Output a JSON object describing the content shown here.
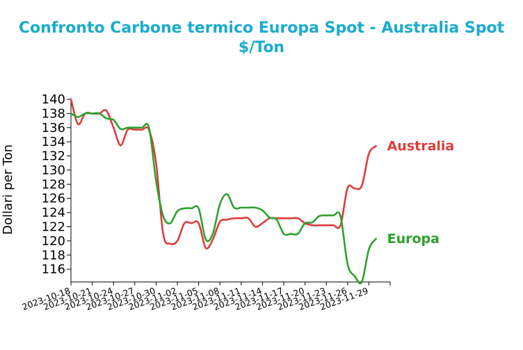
{
  "chart_data": {
    "type": "line",
    "title_line1": "Confronto Carbone termico Europa Spot - Australia Spot",
    "title_line2": "$/Ton",
    "xlabel": "",
    "ylabel": "Dollari per Ton",
    "ylim": [
      114.2,
      140
    ],
    "yticks": [
      116,
      118,
      120,
      122,
      124,
      126,
      128,
      130,
      132,
      134,
      136,
      138,
      140
    ],
    "xticks": [
      "2023-10-18",
      "2023-10-21",
      "2023-10-24",
      "2023-10-27",
      "2023-10-30",
      "2023-11-02",
      "2023-11-05",
      "2023-11-08",
      "2023-11-11",
      "2023-11-14",
      "2023-11-17",
      "2023-11-20",
      "2023-11-23",
      "2023-11-26",
      "2023-11-29"
    ],
    "grid": false,
    "series": [
      {
        "name": "Australia",
        "color": "#dd3b3b",
        "points": [
          [
            "2023-10-18",
            140.0
          ],
          [
            "2023-10-19",
            136.5
          ],
          [
            "2023-10-20",
            138.0
          ],
          [
            "2023-10-21",
            138.0
          ],
          [
            "2023-10-22",
            138.0
          ],
          [
            "2023-10-23",
            138.4
          ],
          [
            "2023-10-24",
            136.0
          ],
          [
            "2023-10-25",
            133.5
          ],
          [
            "2023-10-26",
            135.7
          ],
          [
            "2023-10-27",
            135.7
          ],
          [
            "2023-10-28",
            135.7
          ],
          [
            "2023-10-29",
            135.7
          ],
          [
            "2023-10-30",
            131.0
          ],
          [
            "2023-10-31",
            121.0
          ],
          [
            "2023-11-01",
            119.6
          ],
          [
            "2023-11-02",
            120.0
          ],
          [
            "2023-11-03",
            122.5
          ],
          [
            "2023-11-04",
            122.5
          ],
          [
            "2023-11-05",
            122.5
          ],
          [
            "2023-11-06",
            119.0
          ],
          [
            "2023-11-07",
            120.2
          ],
          [
            "2023-11-08",
            122.7
          ],
          [
            "2023-11-09",
            123.0
          ],
          [
            "2023-11-10",
            123.2
          ],
          [
            "2023-11-11",
            123.2
          ],
          [
            "2023-11-12",
            123.2
          ],
          [
            "2023-11-13",
            122.0
          ],
          [
            "2023-11-14",
            122.5
          ],
          [
            "2023-11-15",
            123.2
          ],
          [
            "2023-11-16",
            123.2
          ],
          [
            "2023-11-17",
            123.2
          ],
          [
            "2023-11-18",
            123.2
          ],
          [
            "2023-11-19",
            123.2
          ],
          [
            "2023-11-20",
            122.5
          ],
          [
            "2023-11-21",
            122.2
          ],
          [
            "2023-11-22",
            122.2
          ],
          [
            "2023-11-23",
            122.2
          ],
          [
            "2023-11-24",
            122.2
          ],
          [
            "2023-11-25",
            122.2
          ],
          [
            "2023-11-26",
            127.5
          ],
          [
            "2023-11-27",
            127.4
          ],
          [
            "2023-11-28",
            127.8
          ],
          [
            "2023-11-29",
            132.3
          ],
          [
            "2023-11-30",
            133.4
          ]
        ]
      },
      {
        "name": "Europa",
        "color": "#2ca02c",
        "points": [
          [
            "2023-10-18",
            138.0
          ],
          [
            "2023-10-19",
            137.5
          ],
          [
            "2023-10-20",
            138.0
          ],
          [
            "2023-10-21",
            138.0
          ],
          [
            "2023-10-22",
            138.0
          ],
          [
            "2023-10-23",
            137.3
          ],
          [
            "2023-10-24",
            137.1
          ],
          [
            "2023-10-25",
            135.8
          ],
          [
            "2023-10-26",
            136.0
          ],
          [
            "2023-10-27",
            136.0
          ],
          [
            "2023-10-28",
            136.0
          ],
          [
            "2023-10-29",
            136.0
          ],
          [
            "2023-10-30",
            128.5
          ],
          [
            "2023-10-31",
            123.5
          ],
          [
            "2023-11-01",
            122.5
          ],
          [
            "2023-11-02",
            124.2
          ],
          [
            "2023-11-03",
            124.6
          ],
          [
            "2023-11-04",
            124.6
          ],
          [
            "2023-11-05",
            124.6
          ],
          [
            "2023-11-06",
            120.2
          ],
          [
            "2023-11-07",
            121.0
          ],
          [
            "2023-11-08",
            125.2
          ],
          [
            "2023-11-09",
            126.6
          ],
          [
            "2023-11-10",
            124.7
          ],
          [
            "2023-11-11",
            124.7
          ],
          [
            "2023-11-12",
            124.7
          ],
          [
            "2023-11-13",
            124.7
          ],
          [
            "2023-11-14",
            124.3
          ],
          [
            "2023-11-15",
            123.3
          ],
          [
            "2023-11-16",
            123.0
          ],
          [
            "2023-11-17",
            121.0
          ],
          [
            "2023-11-18",
            121.0
          ],
          [
            "2023-11-19",
            121.0
          ],
          [
            "2023-11-20",
            122.5
          ],
          [
            "2023-11-21",
            122.6
          ],
          [
            "2023-11-22",
            123.5
          ],
          [
            "2023-11-23",
            123.6
          ],
          [
            "2023-11-24",
            123.6
          ],
          [
            "2023-11-25",
            123.5
          ],
          [
            "2023-11-26",
            116.7
          ],
          [
            "2023-11-27",
            115.0
          ],
          [
            "2023-11-28",
            114.2
          ],
          [
            "2023-11-29",
            118.8
          ],
          [
            "2023-11-30",
            120.3
          ]
        ]
      }
    ]
  }
}
